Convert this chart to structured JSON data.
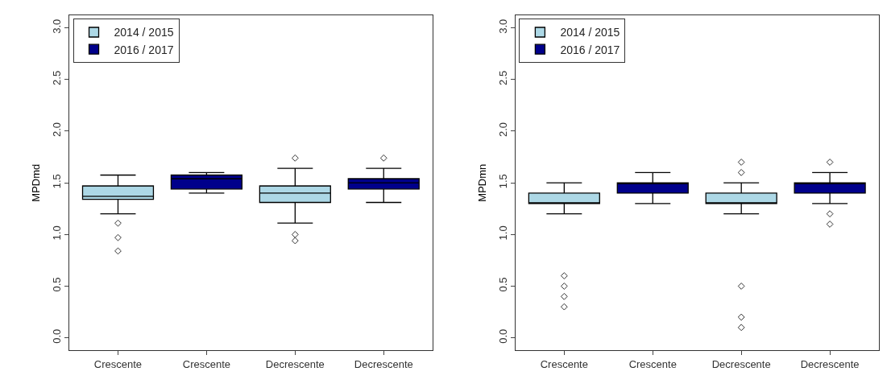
{
  "chart_data": [
    {
      "type": "box",
      "ylabel": "MPDmd",
      "categories": [
        "Crescente",
        "Crescente",
        "Decrescente",
        "Decrescente"
      ],
      "ylim": [
        -0.12,
        3.12
      ],
      "yticks": [
        {
          "value": 0,
          "label": "0.0"
        },
        0.5,
        {
          "value": 1,
          "label": "1.0"
        },
        1.5,
        {
          "value": 2,
          "label": "2.0"
        },
        2.5,
        {
          "value": 3,
          "label": "3.0"
        }
      ],
      "legend": "top left",
      "marker": "diamond",
      "series": [
        {
          "name": "2014 / 2015",
          "color": "#add8e6",
          "boxes": [
            {
              "low": 1.2,
              "q1": 1.34,
              "median": 1.37,
              "q3": 1.47,
              "high": 1.575,
              "outliers": [
                1.11,
                0.97,
                0.84
              ]
            },
            null,
            {
              "low": 1.11,
              "q1": 1.31,
              "median": 1.4,
              "q3": 1.47,
              "high": 1.64,
              "outliers": [
                1.74,
                1.0,
                0.94
              ]
            },
            null
          ]
        },
        {
          "name": "2016 / 2017",
          "color": "#00008b",
          "boxes": [
            null,
            {
              "low": 1.4,
              "q1": 1.44,
              "median": 1.54,
              "q3": 1.575,
              "high": 1.6
            },
            null,
            {
              "low": 1.31,
              "q1": 1.44,
              "median": 1.5,
              "q3": 1.54,
              "high": 1.64,
              "outliers": [
                1.74
              ]
            }
          ]
        }
      ]
    },
    {
      "type": "box",
      "ylabel": "MPDmn",
      "categories": [
        "Crescente",
        "Crescente",
        "Decrescente",
        "Decrescente"
      ],
      "ylim": [
        -0.12,
        3.12
      ],
      "yticks": [
        {
          "value": 0,
          "label": "0.0"
        },
        0.5,
        {
          "value": 1,
          "label": "1.0"
        },
        1.5,
        {
          "value": 2,
          "label": "2.0"
        },
        2.5,
        {
          "value": 3,
          "label": "3.0"
        }
      ],
      "legend": "top left",
      "marker": "diamond",
      "series": [
        {
          "name": "2014 / 2015",
          "color": "#add8e6",
          "boxes": [
            {
              "low": 1.2,
              "q1": 1.3,
              "median": 1.3,
              "q3": 1.4,
              "high": 1.5,
              "outliers": [
                0.6,
                0.5,
                0.4,
                0.3
              ]
            },
            null,
            {
              "low": 1.2,
              "q1": 1.3,
              "median": 1.3,
              "q3": 1.4,
              "high": 1.5,
              "outliers": [
                1.7,
                1.6,
                0.5,
                0.2,
                0.1
              ]
            },
            null
          ]
        },
        {
          "name": "2016 / 2017",
          "color": "#00008b",
          "boxes": [
            null,
            {
              "low": 1.3,
              "q1": 1.4,
              "median": 1.5,
              "q3": 1.5,
              "high": 1.6
            },
            null,
            {
              "low": 1.3,
              "q1": 1.4,
              "median": 1.5,
              "q3": 1.5,
              "high": 1.6,
              "outliers": [
                1.7,
                1.2,
                1.1
              ]
            }
          ]
        }
      ]
    }
  ]
}
